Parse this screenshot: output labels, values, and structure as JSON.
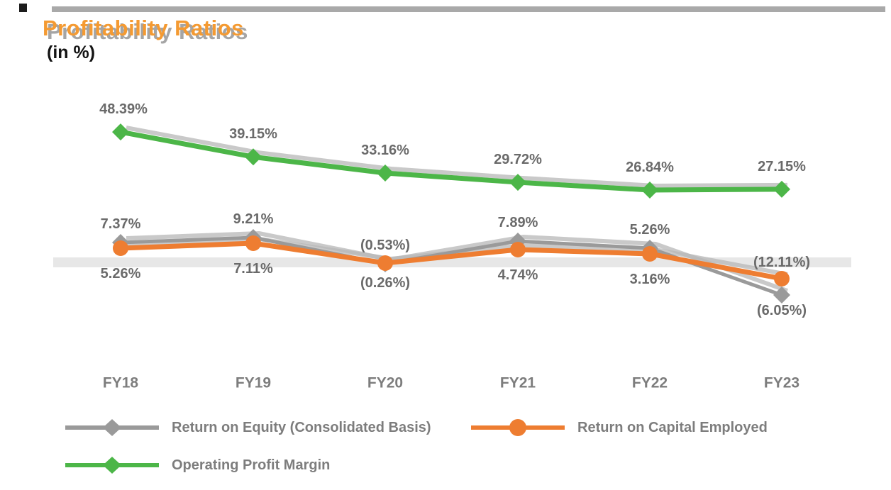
{
  "title": "Profitability Ratios",
  "unit_label": "(in %)",
  "chart_data": {
    "type": "line",
    "title": "Profitability Ratios",
    "unit": "percent",
    "categories": [
      "FY18",
      "FY19",
      "FY20",
      "FY21",
      "FY22",
      "FY23"
    ],
    "series": [
      {
        "name": "Return on Equity (Consolidated Basis)",
        "color": "#9a9a9a",
        "marker": "diamond",
        "values": [
          7.37,
          9.21,
          -0.53,
          7.89,
          5.26,
          -12.11
        ],
        "labels": [
          "7.37%",
          "9.21%",
          "(0.53%)",
          "7.89%",
          "5.26%",
          "(12.11%)"
        ]
      },
      {
        "name": "Return on Capital Employed",
        "color": "#ee7d31",
        "marker": "circle",
        "values": [
          5.26,
          7.11,
          -0.26,
          4.74,
          3.16,
          -6.05
        ],
        "labels": [
          "5.26%",
          "7.11%",
          "(0.26%)",
          "4.74%",
          "3.16%",
          "(6.05%)"
        ]
      },
      {
        "name": "Operating Profit Margin",
        "color": "#4cb648",
        "marker": "diamond",
        "values": [
          48.39,
          39.15,
          33.16,
          29.72,
          26.84,
          27.15
        ],
        "labels": [
          "48.39%",
          "39.15%",
          "33.16%",
          "29.72%",
          "26.84%",
          "27.15%"
        ]
      }
    ],
    "ylim": [
      -20,
      55
    ],
    "zero_line": true,
    "grid": false,
    "legend_position": "bottom",
    "x_axis_labels_color": "#7d7d7d",
    "data_label_color": "#6a6a6a",
    "zero_band_color": "#e7e7e7",
    "negative_format": "parentheses"
  },
  "legend": {
    "items": [
      {
        "label": "Return on Equity (Consolidated Basis)",
        "color": "#9a9a9a",
        "marker": "diamond"
      },
      {
        "label": "Return on Capital Employed",
        "color": "#ee7d31",
        "marker": "circle"
      },
      {
        "label": "Operating Profit Margin",
        "color": "#4cb648",
        "marker": "diamond"
      }
    ]
  }
}
